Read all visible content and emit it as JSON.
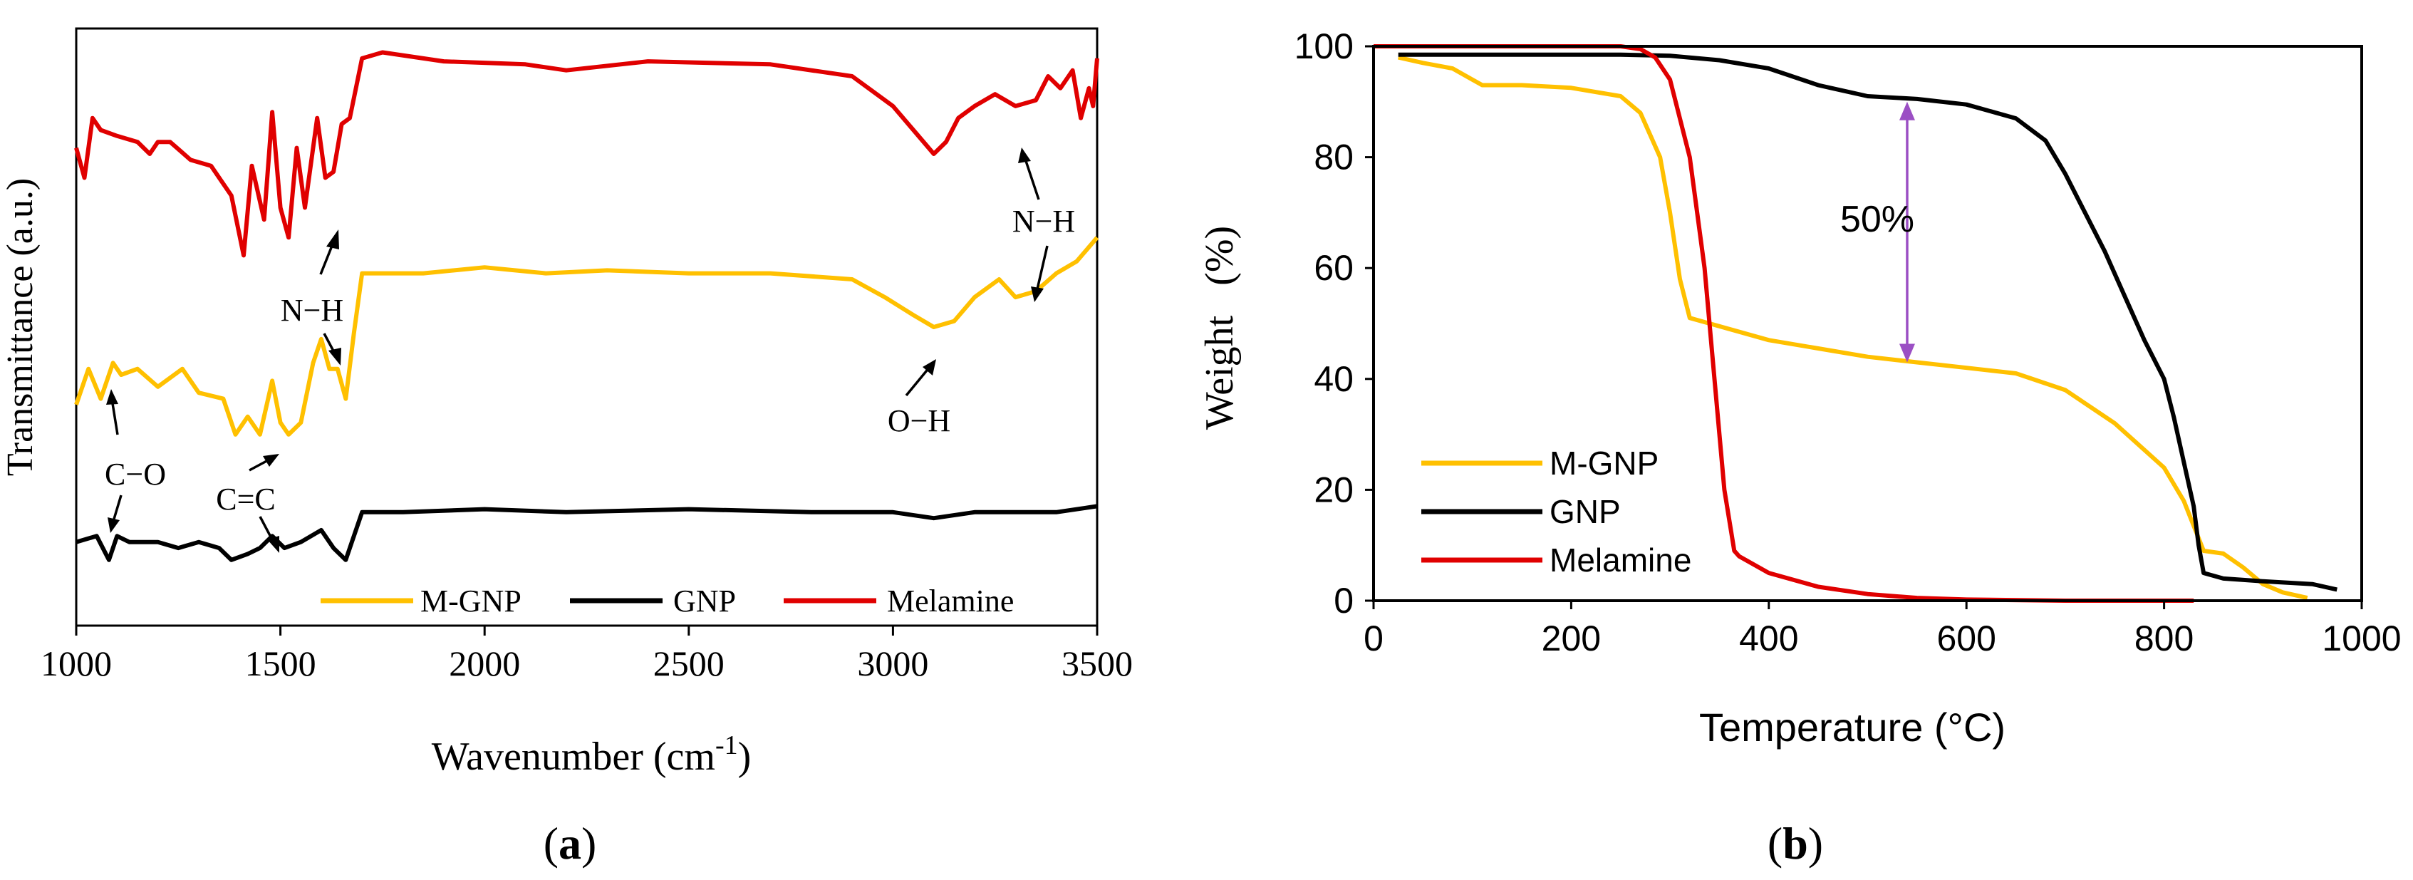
{
  "panels": [
    {
      "label_open": "(",
      "label": "a",
      "label_close": ")"
    },
    {
      "label_open": "(",
      "label": "b",
      "label_close": ")"
    }
  ],
  "colors": {
    "mgnp": "#FFC000",
    "gnp": "#000000",
    "melamine": "#E00000",
    "arrow": "#9B4FC4",
    "axis": "#000000"
  },
  "chart_data": [
    {
      "type": "line",
      "title": "",
      "xlabel_main": "Wavenumber (cm",
      "xlabel_sup": "-1",
      "xlabel_close": ")",
      "ylabel": "Transmittance (a.u.)",
      "xlim": [
        1000,
        3500
      ],
      "ylim": [
        0,
        10
      ],
      "xticks": [
        1000,
        1500,
        2000,
        2500,
        3000,
        3500
      ],
      "yticks_shown": false,
      "grid": false,
      "legend_position": "bottom-right",
      "series": [
        {
          "name": "M-GNP",
          "color": "#FFC000",
          "x": [
            1000,
            1030,
            1060,
            1090,
            1110,
            1150,
            1200,
            1260,
            1300,
            1360,
            1390,
            1420,
            1450,
            1480,
            1500,
            1520,
            1550,
            1580,
            1600,
            1620,
            1640,
            1660,
            1680,
            1700,
            1750,
            1850,
            2000,
            2150,
            2300,
            2500,
            2700,
            2900,
            2980,
            3050,
            3100,
            3150,
            3200,
            3260,
            3300,
            3350,
            3400,
            3450,
            3500
          ],
          "y": [
            3.7,
            4.3,
            3.8,
            4.4,
            4.2,
            4.3,
            4.0,
            4.3,
            3.9,
            3.8,
            3.2,
            3.5,
            3.2,
            4.1,
            3.4,
            3.2,
            3.4,
            4.4,
            4.8,
            4.3,
            4.3,
            3.8,
            4.9,
            5.9,
            5.9,
            5.9,
            6.0,
            5.9,
            5.95,
            5.9,
            5.9,
            5.8,
            5.5,
            5.2,
            5.0,
            5.1,
            5.5,
            5.8,
            5.5,
            5.6,
            5.9,
            6.1,
            6.5
          ]
        },
        {
          "name": "GNP",
          "color": "#000000",
          "x": [
            1000,
            1050,
            1080,
            1100,
            1130,
            1200,
            1250,
            1300,
            1350,
            1380,
            1420,
            1450,
            1480,
            1510,
            1550,
            1600,
            1630,
            1660,
            1670,
            1700,
            1800,
            2000,
            2200,
            2500,
            2800,
            3000,
            3100,
            3200,
            3300,
            3400,
            3500
          ],
          "y": [
            1.4,
            1.5,
            1.1,
            1.5,
            1.4,
            1.4,
            1.3,
            1.4,
            1.3,
            1.1,
            1.2,
            1.3,
            1.5,
            1.3,
            1.4,
            1.6,
            1.3,
            1.1,
            1.3,
            1.9,
            1.9,
            1.95,
            1.9,
            1.95,
            1.9,
            1.9,
            1.8,
            1.9,
            1.9,
            1.9,
            2.0
          ]
        },
        {
          "name": "Melamine",
          "color": "#E00000",
          "x": [
            1000,
            1020,
            1040,
            1060,
            1100,
            1150,
            1180,
            1200,
            1230,
            1280,
            1330,
            1380,
            1410,
            1430,
            1460,
            1480,
            1500,
            1520,
            1540,
            1560,
            1590,
            1610,
            1630,
            1650,
            1670,
            1700,
            1750,
            1900,
            2100,
            2200,
            2400,
            2700,
            2900,
            3000,
            3050,
            3100,
            3130,
            3160,
            3200,
            3250,
            3300,
            3350,
            3380,
            3410,
            3440,
            3460,
            3480,
            3490,
            3500
          ],
          "y": [
            8.0,
            7.5,
            8.5,
            8.3,
            8.2,
            8.1,
            7.9,
            8.1,
            8.1,
            7.8,
            7.7,
            7.2,
            6.2,
            7.7,
            6.8,
            8.6,
            7.0,
            6.5,
            8.0,
            7.0,
            8.5,
            7.5,
            7.6,
            8.4,
            8.5,
            9.5,
            9.6,
            9.45,
            9.4,
            9.3,
            9.45,
            9.4,
            9.2,
            8.7,
            8.3,
            7.9,
            8.1,
            8.5,
            8.7,
            8.9,
            8.7,
            8.8,
            9.2,
            9.0,
            9.3,
            8.5,
            9.0,
            8.7,
            9.5
          ]
        }
      ],
      "annotations": [
        {
          "text": "N−H",
          "near": 1560
        },
        {
          "text": "N−H",
          "near": 3340
        },
        {
          "text": "C−O",
          "near": 1090
        },
        {
          "text": "C=C",
          "near": 1510
        },
        {
          "text": "O−H",
          "near": 3100
        }
      ]
    },
    {
      "type": "line",
      "title": "",
      "xlabel": "Temperature (°C)",
      "ylabel": "Weight   (%)",
      "xlim": [
        0,
        1000
      ],
      "ylim": [
        0,
        100
      ],
      "xticks": [
        0,
        200,
        400,
        600,
        800,
        1000
      ],
      "yticks": [
        0,
        20,
        40,
        60,
        80,
        100
      ],
      "grid": false,
      "legend_position": "bottom-left",
      "series": [
        {
          "name": "M-GNP",
          "color": "#FFC000",
          "x": [
            25,
            50,
            80,
            100,
            110,
            150,
            200,
            250,
            270,
            290,
            300,
            310,
            320,
            340,
            400,
            450,
            500,
            550,
            600,
            650,
            700,
            750,
            800,
            820,
            840,
            860,
            880,
            900,
            920,
            945
          ],
          "y": [
            98,
            97,
            96,
            94,
            93,
            93,
            92.5,
            91,
            88,
            80,
            70,
            58,
            51,
            50,
            47,
            45.5,
            44,
            43,
            42,
            41,
            38,
            32,
            24,
            18,
            9,
            8.5,
            6,
            3,
            1.5,
            0.5
          ]
        },
        {
          "name": "GNP",
          "color": "#000000",
          "x": [
            25,
            100,
            200,
            250,
            300,
            350,
            400,
            450,
            500,
            550,
            600,
            650,
            680,
            700,
            720,
            740,
            760,
            780,
            800,
            810,
            820,
            830,
            835,
            840,
            860,
            900,
            950,
            975
          ],
          "y": [
            98.5,
            98.5,
            98.5,
            98.5,
            98.3,
            97.5,
            96,
            93,
            91,
            90.5,
            89.5,
            87,
            83,
            77,
            70,
            63,
            55,
            47,
            40,
            33,
            25,
            17,
            10,
            5,
            4,
            3.5,
            3,
            2
          ]
        },
        {
          "name": "Melamine",
          "color": "#E00000",
          "x": [
            0,
            200,
            250,
            270,
            285,
            300,
            320,
            335,
            345,
            355,
            365,
            370,
            400,
            450,
            500,
            550,
            600,
            700,
            800,
            830
          ],
          "y": [
            100,
            100,
            100,
            99.5,
            98,
            94,
            80,
            60,
            40,
            20,
            9,
            8,
            5,
            2.5,
            1.2,
            0.5,
            0.2,
            0,
            0,
            0
          ]
        }
      ],
      "annotations": [
        {
          "text": "50%",
          "x": 540,
          "y_top": 90,
          "y_bottom": 43
        }
      ]
    }
  ]
}
